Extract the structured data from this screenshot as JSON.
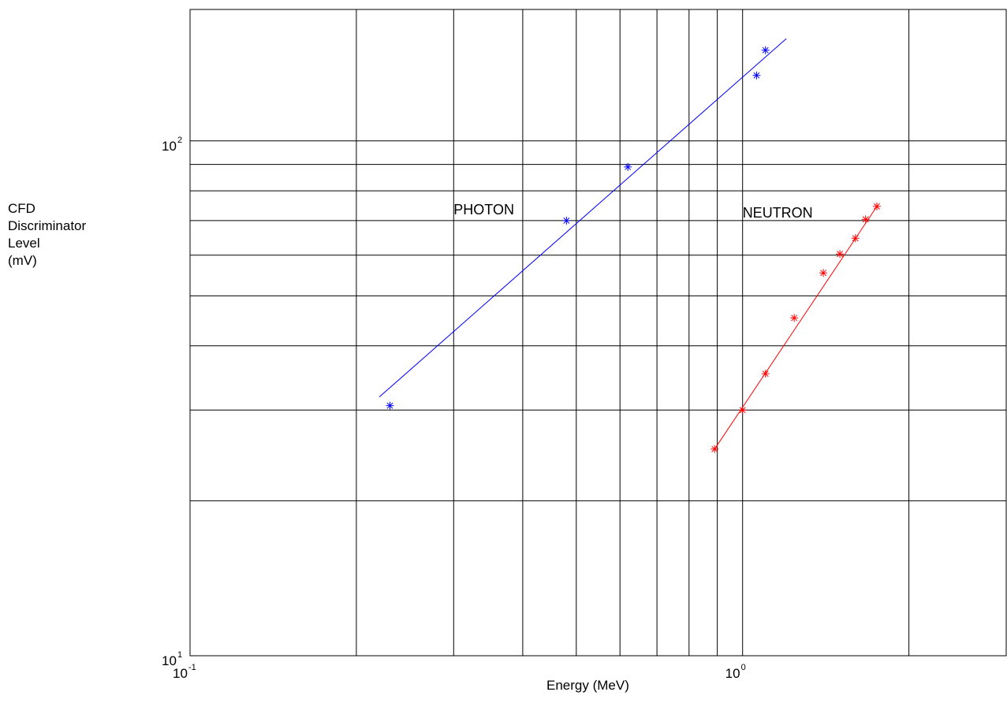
{
  "chart_data": {
    "type": "scatter",
    "title": "",
    "xlabel": "Energy (MeV)",
    "ylabel_lines": [
      "CFD",
      "Discriminator",
      "Level",
      "(mV)"
    ],
    "x_scale": "log",
    "y_scale": "log",
    "xlim": [
      0.1,
      3.0
    ],
    "ylim": [
      10,
      180
    ],
    "grid": true,
    "x_ticks": [
      {
        "base": "10",
        "exp": "-1",
        "value": 0.1
      },
      {
        "base": "10",
        "exp": "0",
        "value": 1
      }
    ],
    "y_ticks": [
      {
        "base": "10",
        "exp": "1",
        "value": 10
      },
      {
        "base": "10",
        "exp": "2",
        "value": 100
      }
    ],
    "x_grid": [
      0.2,
      0.3,
      0.4,
      0.5,
      0.6,
      0.7,
      0.8,
      0.9,
      1,
      2
    ],
    "y_grid": [
      20,
      30,
      40,
      50,
      60,
      70,
      80,
      90,
      100
    ],
    "annotations": [
      {
        "text": "PHOTON",
        "x": 0.3,
        "y": 72
      },
      {
        "text": "NEUTRON",
        "x": 1.0,
        "y": 71
      }
    ],
    "series": [
      {
        "color": "#0000ff",
        "points": [
          {
            "x": 0.23,
            "y": 30.6
          },
          {
            "x": 0.48,
            "y": 70
          },
          {
            "x": 0.62,
            "y": 89
          },
          {
            "x": 1.06,
            "y": 134
          },
          {
            "x": 1.1,
            "y": 150
          }
        ],
        "fit": [
          {
            "x": 0.22,
            "y": 31.8
          },
          {
            "x": 1.2,
            "y": 158
          }
        ]
      },
      {
        "color": "#ff0000",
        "points": [
          {
            "x": 0.89,
            "y": 25.2
          },
          {
            "x": 1.0,
            "y": 30
          },
          {
            "x": 1.1,
            "y": 35.3
          },
          {
            "x": 1.24,
            "y": 45.3
          },
          {
            "x": 1.4,
            "y": 55.4
          },
          {
            "x": 1.5,
            "y": 60.3
          },
          {
            "x": 1.6,
            "y": 64.7
          },
          {
            "x": 1.67,
            "y": 70.4
          },
          {
            "x": 1.75,
            "y": 74.6
          }
        ],
        "fit": [
          {
            "x": 0.89,
            "y": 25.2
          },
          {
            "x": 1.75,
            "y": 74.6
          }
        ]
      }
    ]
  }
}
